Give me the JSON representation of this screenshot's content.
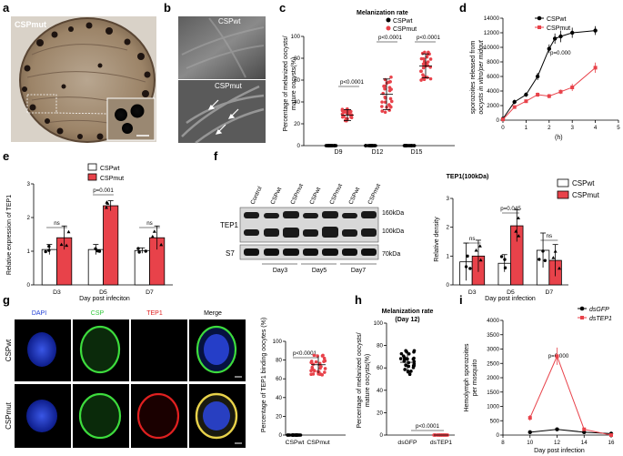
{
  "colors": {
    "wt": "#000000",
    "mut": "#e8424a",
    "blue": "#1f3ed6",
    "green": "#32c83a",
    "red": "#e02020"
  },
  "panel_labels": {
    "a": "a",
    "b": "b",
    "c": "c",
    "d": "d",
    "e": "e",
    "f": "f",
    "g": "g",
    "h": "h",
    "i": "i"
  },
  "panel_a": {
    "label": "CSPmut"
  },
  "panel_b": {
    "top_label": "CSPwt",
    "bottom_label": "CSPmut"
  },
  "panel_c": {
    "title": "Melanization rate",
    "ylabel_line1": "Percentage of melanized oocysts/",
    "ylabel_line2": "mature oocysts(%)",
    "legend": [
      "CSPwt",
      "CSPmut"
    ],
    "p_values": [
      "p<0.0001",
      "p<0.0001",
      "p<0.0001"
    ]
  },
  "panel_d": {
    "ylabel_line1": "sporozoites released from",
    "ylabel_line2": "oocysts in vitro/per midgut",
    "xlabel": "(h)",
    "legend": [
      "CSPwt",
      "CSPmut"
    ],
    "p_value": "p=0.000"
  },
  "panel_e": {
    "ylabel": "Relative expression of TEP1",
    "xlabel": "Day post infeciton",
    "legend": [
      "CSPwt",
      "CSPmut"
    ],
    "annotations": [
      "ns",
      "p=0.001",
      "ns"
    ]
  },
  "panel_f_blot": {
    "lanes": [
      "Control",
      "CSPwt",
      "CSPmut",
      "CSPwt",
      "CSPmut",
      "CSPwt",
      "CSPmut"
    ],
    "row_labels": [
      "TEP1",
      "S7"
    ],
    "kda_labels": [
      "160kDa",
      "100kDa",
      "70kDa"
    ],
    "day_labels": [
      "Day3",
      "Day5",
      "Day7"
    ]
  },
  "panel_f_chart": {
    "title": "TEP1(100kDa)",
    "ylabel": "Relative density",
    "xlabel": "Day post infection",
    "legend": [
      "CSPwt",
      "CSPmut"
    ],
    "annotations": [
      "ns",
      "p=0.045",
      "ns"
    ]
  },
  "panel_g": {
    "channels": [
      "DAPI",
      "CSP",
      "TEP1",
      "Merge"
    ],
    "rows": [
      "CSPwt",
      "CSPmut"
    ],
    "chart_ylabel": "Percentage of TEP1 binding oocytes (%)",
    "p_value": "p<0.0001"
  },
  "panel_h": {
    "title_line1": "Melanization rate",
    "title_line2": "(Day 12)",
    "ylabel_line1": "Percentage of melanized oocysts/",
    "ylabel_line2": "mature oocysts(%)",
    "p_value": "p<0.0001"
  },
  "panel_i": {
    "ylabel_line1": "Hemolymph sporozoites",
    "ylabel_line2": "per mosquito",
    "xlabel": "Day post infection",
    "legend": [
      "dsGFP",
      "dsTEP1"
    ],
    "p_value": "p=0.000"
  },
  "chart_data": [
    {
      "id": "c",
      "type": "scatter",
      "title": "Melanization rate",
      "categories": [
        "D9",
        "D12",
        "D15"
      ],
      "ylabel": "Percentage of melanized oocysts/ mature oocysts(%)",
      "ylim": [
        0,
        100
      ],
      "yticks": [
        0,
        20,
        40,
        60,
        80,
        100
      ],
      "series": [
        {
          "name": "CSPwt",
          "mean": [
            0,
            0,
            0
          ],
          "sd": [
            0,
            0,
            0
          ]
        },
        {
          "name": "CSPmut",
          "mean": [
            28,
            47,
            73
          ],
          "sd": [
            5,
            14,
            11
          ]
        }
      ],
      "legend": "top-right"
    },
    {
      "id": "d",
      "type": "line",
      "xlabel": "(h)",
      "ylim": [
        0,
        14000
      ],
      "yticks": [
        0,
        2000,
        4000,
        6000,
        8000,
        10000,
        12000,
        14000
      ],
      "xlim": [
        0,
        5
      ],
      "xticks": [
        0,
        1,
        2,
        3,
        4,
        5
      ],
      "series": [
        {
          "name": "CSPwt",
          "x": [
            0,
            0.5,
            1,
            1.5,
            2,
            2.25,
            2.5,
            3,
            4
          ],
          "y": [
            200,
            2500,
            3500,
            6000,
            9800,
            11200,
            11500,
            12000,
            12300
          ],
          "err": [
            200,
            300,
            300,
            500,
            600,
            700,
            800,
            700,
            600
          ]
        },
        {
          "name": "CSPmut",
          "x": [
            0,
            0.5,
            1,
            1.5,
            2,
            2.5,
            3,
            4
          ],
          "y": [
            100,
            1800,
            2600,
            3500,
            3300,
            3900,
            4500,
            7200
          ],
          "err": [
            100,
            200,
            200,
            300,
            300,
            300,
            500,
            700
          ]
        }
      ],
      "legend": "top-left"
    },
    {
      "id": "e",
      "type": "bar",
      "categories": [
        "D3",
        "D5",
        "D7"
      ],
      "xlabel": "Day post infeciton",
      "ylabel": "Relative expression of TEP1",
      "ylim": [
        0,
        3
      ],
      "yticks": [
        0,
        1,
        2,
        3
      ],
      "series": [
        {
          "name": "CSPwt",
          "values": [
            1.05,
            1.05,
            1.02
          ],
          "err": [
            0.15,
            0.15,
            0.08
          ]
        },
        {
          "name": "CSPmut",
          "values": [
            1.4,
            2.35,
            1.4
          ],
          "err": [
            0.35,
            0.15,
            0.35
          ]
        }
      ]
    },
    {
      "id": "f",
      "type": "bar",
      "title": "TEP1(100kDa)",
      "categories": [
        "D3",
        "D5",
        "D7"
      ],
      "xlabel": "Day post infection",
      "ylabel": "Relative density",
      "ylim": [
        0,
        3
      ],
      "yticks": [
        0,
        1,
        2,
        3
      ],
      "series": [
        {
          "name": "CSPwt",
          "values": [
            0.8,
            0.75,
            1.2
          ],
          "err": [
            0.65,
            0.3,
            0.6
          ]
        },
        {
          "name": "CSPmut",
          "values": [
            1.0,
            2.05,
            0.85
          ],
          "err": [
            0.55,
            0.55,
            0.55
          ]
        }
      ]
    },
    {
      "id": "g",
      "type": "scatter",
      "categories": [
        "CSPwt",
        "CSPmut"
      ],
      "ylabel": "Percentage of TEP1 binding oocytes (%)",
      "ylim": [
        0,
        100
      ],
      "yticks": [
        0,
        20,
        40,
        60,
        80,
        100
      ],
      "series": [
        {
          "name": "values",
          "mean": [
            0,
            75
          ],
          "sd": [
            0,
            9
          ]
        }
      ]
    },
    {
      "id": "h",
      "type": "scatter",
      "title": "Melanization rate (Day 12)",
      "categories": [
        "dsGFP",
        "dsTEP1"
      ],
      "ylim": [
        0,
        100
      ],
      "yticks": [
        0,
        20,
        40,
        60,
        80,
        100
      ],
      "series": [
        {
          "name": "values",
          "mean": [
            65,
            0
          ],
          "sd": [
            9,
            0
          ]
        }
      ]
    },
    {
      "id": "i",
      "type": "line",
      "xlabel": "Day post infection",
      "ylabel": "Hemolymph sporozoites per mosquito",
      "ylim": [
        0,
        4000
      ],
      "yticks": [
        0,
        500,
        1000,
        1500,
        2000,
        2500,
        3000,
        3500,
        4000
      ],
      "xlim": [
        8,
        16
      ],
      "xticks": [
        8,
        10,
        12,
        14,
        16
      ],
      "series": [
        {
          "name": "dsGFP",
          "x": [
            10,
            12,
            14,
            16
          ],
          "y": [
            100,
            200,
            100,
            50
          ],
          "err": [
            20,
            30,
            20,
            10
          ]
        },
        {
          "name": "dsTEP1",
          "x": [
            10,
            12,
            14,
            16
          ],
          "y": [
            600,
            2750,
            200,
            0
          ],
          "err": [
            100,
            300,
            50,
            10
          ]
        }
      ],
      "legend": "top-right"
    }
  ]
}
